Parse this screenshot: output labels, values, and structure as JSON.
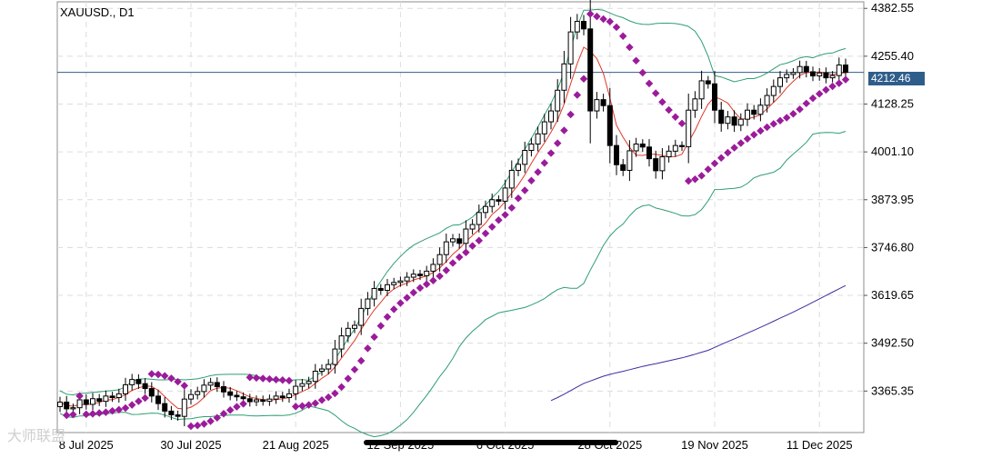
{
  "chart_data": {
    "type": "candlestick",
    "title": "XAUUSD., D1",
    "symbol": "XAUUSD.",
    "timeframe": "D1",
    "current_price": "4212.46",
    "y_ticks": [
      "4382.55",
      "4255.40",
      "4128.25",
      "4001.10",
      "3873.95",
      "3746.80",
      "3619.65",
      "3492.50",
      "3365.35"
    ],
    "y_tick_values": [
      4382.55,
      4255.4,
      4128.25,
      4001.1,
      3873.95,
      3746.8,
      3619.65,
      3492.5,
      3365.35
    ],
    "x_ticks": [
      "8 Jul 2025",
      "30 Jul 2025",
      "21 Aug 2025",
      "12 Sep 2025",
      "6 Oct 2025",
      "28 Oct 2025",
      "19 Nov 2025",
      "11 Dec 2025"
    ],
    "x_tick_index": [
      4,
      20,
      36,
      52,
      68,
      84,
      100,
      116
    ],
    "ylim": [
      3255,
      4400
    ],
    "grid": true,
    "close": [
      3336,
      3318,
      3321,
      3342,
      3330,
      3345,
      3338,
      3352,
      3348,
      3358,
      3382,
      3396,
      3385,
      3372,
      3352,
      3332,
      3312,
      3302,
      3298,
      3344,
      3356,
      3364,
      3381,
      3388,
      3377,
      3363,
      3354,
      3350,
      3345,
      3337,
      3342,
      3338,
      3344,
      3352,
      3348,
      3358,
      3378,
      3385,
      3391,
      3418,
      3424,
      3436,
      3477,
      3512,
      3532,
      3540,
      3585,
      3610,
      3638,
      3633,
      3648,
      3654,
      3658,
      3668,
      3676,
      3672,
      3684,
      3702,
      3728,
      3762,
      3770,
      3758,
      3796,
      3808,
      3840,
      3856,
      3874,
      3870,
      3905,
      3952,
      3968,
      4005,
      4022,
      4049,
      4081,
      4110,
      4165,
      4235,
      4320,
      4348,
      4328,
      4110,
      4140,
      4124,
      4018,
      3967,
      3952,
      4004,
      4022,
      4014,
      3983,
      3951,
      3988,
      4003,
      4018,
      4015,
      4112,
      4142,
      4190,
      4182,
      4112,
      4077,
      4094,
      4072,
      4088,
      4112,
      4101,
      4125,
      4151,
      4175,
      4198,
      4207,
      4212,
      4228,
      4214,
      4203,
      4211,
      4198,
      4204,
      4232,
      4212.46
    ],
    "upper_band_points": 40,
    "series": [
      {
        "name": "MA",
        "kind": "line",
        "color": "#e0392b"
      },
      {
        "name": "Bands",
        "kind": "line",
        "color": "#2e9e71"
      },
      {
        "name": "Parabolic SAR",
        "kind": "dots",
        "color": "#9b1b9b"
      },
      {
        "name": "MA long",
        "kind": "line",
        "color": "#3a2ea0"
      }
    ]
  },
  "colors": {
    "bull": "#ffffff",
    "bear": "#000000",
    "grid": "#dcdcdc",
    "price_line": "#2f5d8a"
  },
  "watermark": "大师联盟"
}
